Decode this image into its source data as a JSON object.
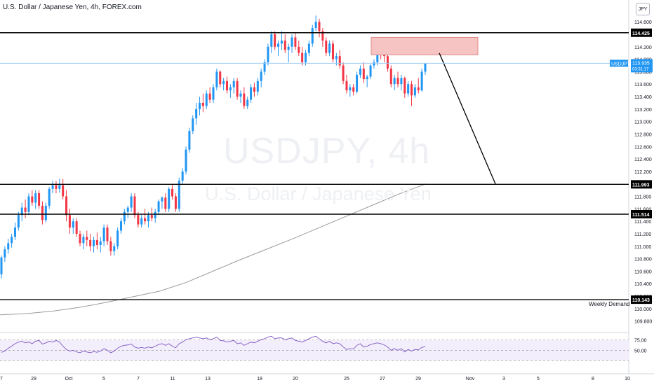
{
  "header": {
    "title": "U.S. Dollar / Japanese Yen, 4h, FOREX.com"
  },
  "watermark": {
    "symbol": "USDJPY, 4h",
    "name": "U.S. Dollar / Japanese Yen"
  },
  "symbol_badge": "JPY",
  "colors": {
    "up": "#2196f3",
    "down": "#f23645",
    "ma": "#9a9a9a",
    "rsi": "#7e57c2",
    "supply_zone": "#f7c4c4",
    "level_line": "#000000",
    "price_line": "#9ccaf4",
    "price_label": "#2196f3"
  },
  "chart_data": {
    "type": "candlestick",
    "title": "U.S. Dollar / Japanese Yen, 4h, FOREX.com",
    "ylim": [
      109.65,
      114.95
    ],
    "y_ticks": [
      "114.600",
      "114.400",
      "114.200",
      "114.000",
      "113.800",
      "113.600",
      "113.400",
      "113.200",
      "113.000",
      "112.800",
      "112.600",
      "112.400",
      "112.200",
      "112.000",
      "111.800",
      "111.600",
      "111.400",
      "111.200",
      "111.000",
      "110.800",
      "110.600",
      "110.400",
      "110.200",
      "110.000",
      "109.800"
    ],
    "x_ticks": [
      "7",
      "29",
      "Oct",
      "5",
      "7",
      "11",
      "13",
      "18",
      "20",
      "25",
      "27",
      "29",
      "Nov",
      "3",
      "5",
      "8",
      "10"
    ],
    "candles": [
      [
        110.55,
        110.85,
        110.48,
        110.82
      ],
      [
        110.82,
        111.0,
        110.75,
        110.95
      ],
      [
        110.95,
        111.12,
        110.88,
        111.05
      ],
      [
        111.05,
        111.2,
        110.98,
        111.15
      ],
      [
        111.15,
        111.38,
        111.1,
        111.3
      ],
      [
        111.3,
        111.55,
        111.25,
        111.5
      ],
      [
        111.5,
        111.7,
        111.4,
        111.62
      ],
      [
        111.62,
        111.75,
        111.45,
        111.55
      ],
      [
        111.55,
        111.85,
        111.5,
        111.8
      ],
      [
        111.8,
        111.9,
        111.65,
        111.7
      ],
      [
        111.7,
        111.9,
        111.6,
        111.85
      ],
      [
        111.85,
        111.9,
        111.6,
        111.65
      ],
      [
        111.65,
        111.72,
        111.35,
        111.42
      ],
      [
        111.42,
        111.7,
        111.38,
        111.65
      ],
      [
        111.65,
        111.95,
        111.6,
        111.92
      ],
      [
        111.92,
        112.05,
        111.85,
        111.98
      ],
      [
        111.98,
        112.05,
        111.85,
        111.92
      ],
      [
        111.92,
        112.08,
        111.86,
        111.98
      ],
      [
        111.98,
        112.08,
        111.75,
        111.8
      ],
      [
        111.8,
        111.9,
        111.4,
        111.5
      ],
      [
        111.5,
        111.6,
        111.2,
        111.3
      ],
      [
        111.3,
        111.45,
        111.2,
        111.4
      ],
      [
        111.4,
        111.45,
        111.15,
        111.2
      ],
      [
        111.2,
        111.25,
        111.0,
        111.05
      ],
      [
        111.05,
        111.2,
        110.95,
        111.15
      ],
      [
        111.15,
        111.25,
        111.0,
        111.1
      ],
      [
        111.1,
        111.2,
        110.92,
        111.0
      ],
      [
        111.0,
        111.15,
        110.9,
        111.1
      ],
      [
        111.1,
        111.22,
        110.95,
        111.02
      ],
      [
        111.02,
        111.15,
        110.9,
        111.08
      ],
      [
        111.08,
        111.35,
        111.0,
        111.3
      ],
      [
        111.3,
        111.35,
        111.02,
        111.08
      ],
      [
        111.08,
        111.15,
        110.85,
        110.92
      ],
      [
        110.92,
        111.05,
        110.85,
        111.0
      ],
      [
        111.0,
        111.3,
        110.95,
        111.25
      ],
      [
        111.25,
        111.45,
        111.2,
        111.4
      ],
      [
        111.4,
        111.6,
        111.35,
        111.55
      ],
      [
        111.55,
        111.65,
        111.45,
        111.62
      ],
      [
        111.62,
        111.85,
        111.55,
        111.8
      ],
      [
        111.8,
        111.85,
        111.45,
        111.5
      ],
      [
        111.5,
        111.55,
        111.3,
        111.35
      ],
      [
        111.35,
        111.5,
        111.3,
        111.45
      ],
      [
        111.45,
        111.6,
        111.35,
        111.4
      ],
      [
        111.4,
        111.55,
        111.3,
        111.5
      ],
      [
        111.5,
        111.62,
        111.4,
        111.45
      ],
      [
        111.45,
        111.6,
        111.38,
        111.55
      ],
      [
        111.55,
        111.75,
        111.5,
        111.72
      ],
      [
        111.72,
        111.8,
        111.6,
        111.78
      ],
      [
        111.78,
        111.85,
        111.55,
        111.6
      ],
      [
        111.6,
        111.95,
        111.55,
        111.92
      ],
      [
        111.92,
        112.0,
        111.75,
        111.8
      ],
      [
        111.8,
        111.85,
        111.55,
        111.6
      ],
      [
        111.6,
        112.1,
        111.55,
        112.05
      ],
      [
        112.05,
        112.25,
        112.0,
        112.2
      ],
      [
        112.2,
        112.6,
        112.15,
        112.55
      ],
      [
        112.55,
        112.9,
        112.5,
        112.85
      ],
      [
        112.85,
        113.1,
        112.8,
        113.05
      ],
      [
        113.05,
        113.3,
        112.95,
        113.2
      ],
      [
        113.2,
        113.4,
        113.1,
        113.3
      ],
      [
        113.3,
        113.45,
        113.15,
        113.25
      ],
      [
        113.25,
        113.5,
        113.2,
        113.45
      ],
      [
        113.45,
        113.55,
        113.3,
        113.35
      ],
      [
        113.35,
        113.6,
        113.3,
        113.55
      ],
      [
        113.55,
        113.85,
        113.5,
        113.8
      ],
      [
        113.8,
        113.82,
        113.55,
        113.6
      ],
      [
        113.6,
        113.7,
        113.5,
        113.65
      ],
      [
        113.65,
        113.72,
        113.45,
        113.5
      ],
      [
        113.5,
        113.6,
        113.38,
        113.55
      ],
      [
        113.55,
        113.7,
        113.45,
        113.65
      ],
      [
        113.65,
        113.7,
        113.35,
        113.4
      ],
      [
        113.4,
        113.5,
        113.3,
        113.45
      ],
      [
        113.45,
        113.55,
        113.2,
        113.25
      ],
      [
        113.25,
        113.4,
        113.2,
        113.35
      ],
      [
        113.35,
        113.6,
        113.3,
        113.55
      ],
      [
        113.55,
        113.62,
        113.4,
        113.48
      ],
      [
        113.48,
        113.7,
        113.42,
        113.65
      ],
      [
        113.65,
        113.85,
        113.55,
        113.8
      ],
      [
        113.8,
        114.0,
        113.75,
        113.95
      ],
      [
        113.95,
        114.25,
        113.9,
        114.2
      ],
      [
        114.2,
        114.45,
        114.1,
        114.4
      ],
      [
        114.4,
        114.45,
        114.15,
        114.2
      ],
      [
        114.2,
        114.3,
        114.05,
        114.25
      ],
      [
        114.25,
        114.45,
        114.15,
        114.3
      ],
      [
        114.3,
        114.4,
        114.1,
        114.15
      ],
      [
        114.15,
        114.25,
        113.95,
        114.2
      ],
      [
        114.2,
        114.4,
        114.1,
        114.35
      ],
      [
        114.35,
        114.42,
        114.15,
        114.2
      ],
      [
        114.2,
        114.3,
        114.05,
        114.1
      ],
      [
        114.1,
        114.2,
        113.9,
        113.95
      ],
      [
        113.95,
        114.15,
        113.9,
        114.1
      ],
      [
        114.1,
        114.3,
        114.05,
        114.25
      ],
      [
        114.25,
        114.55,
        114.2,
        114.5
      ],
      [
        114.5,
        114.7,
        114.45,
        114.6
      ],
      [
        114.6,
        114.65,
        114.35,
        114.45
      ],
      [
        114.45,
        114.5,
        114.2,
        114.3
      ],
      [
        114.3,
        114.35,
        114.05,
        114.1
      ],
      [
        114.1,
        114.3,
        114.05,
        114.25
      ],
      [
        114.25,
        114.3,
        113.95,
        114.0
      ],
      [
        114.0,
        114.1,
        113.9,
        114.05
      ],
      [
        114.05,
        114.15,
        113.85,
        113.9
      ],
      [
        113.9,
        113.95,
        113.6,
        113.65
      ],
      [
        113.65,
        113.75,
        113.45,
        113.5
      ],
      [
        113.5,
        113.6,
        113.4,
        113.55
      ],
      [
        113.55,
        113.6,
        113.42,
        113.48
      ],
      [
        113.48,
        113.8,
        113.45,
        113.75
      ],
      [
        113.75,
        113.9,
        113.7,
        113.85
      ],
      [
        113.85,
        113.95,
        113.62,
        113.68
      ],
      [
        113.68,
        113.75,
        113.55,
        113.72
      ],
      [
        113.72,
        113.92,
        113.68,
        113.9
      ],
      [
        113.9,
        114.0,
        113.85,
        113.95
      ],
      [
        113.95,
        114.18,
        113.9,
        114.15
      ],
      [
        114.15,
        114.2,
        114.0,
        114.1
      ],
      [
        114.1,
        114.2,
        113.95,
        114.05
      ],
      [
        114.05,
        114.1,
        113.8,
        113.85
      ],
      [
        113.85,
        113.9,
        113.55,
        113.6
      ],
      [
        113.6,
        113.75,
        113.5,
        113.7
      ],
      [
        113.7,
        113.8,
        113.55,
        113.6
      ],
      [
        113.6,
        113.75,
        113.5,
        113.7
      ],
      [
        113.7,
        113.72,
        113.38,
        113.45
      ],
      [
        113.45,
        113.65,
        113.4,
        113.6
      ],
      [
        113.6,
        113.65,
        113.25,
        113.42
      ],
      [
        113.42,
        113.6,
        113.38,
        113.55
      ],
      [
        113.55,
        113.7,
        113.45,
        113.5
      ],
      [
        113.5,
        113.85,
        113.48,
        113.8
      ],
      [
        113.8,
        113.94,
        113.75,
        113.93
      ]
    ],
    "ma_line": [
      109.9,
      109.92,
      109.96,
      110.02,
      110.1,
      110.19,
      110.28,
      110.42,
      110.6,
      110.78,
      110.95,
      111.12,
      111.3,
      111.48,
      111.66,
      111.84,
      112.0
    ],
    "levels": [
      {
        "price": 114.425,
        "label": "114.425"
      },
      {
        "price": 111.993,
        "label": "111.993"
      },
      {
        "price": 111.514,
        "label": "111.514"
      },
      {
        "price": 110.143,
        "label": "110.143",
        "note": "Weekly Demand"
      }
    ],
    "last_price": {
      "symbol": "USDJPY",
      "price": 113.935,
      "label": "113.935",
      "timer": "03:31:17"
    },
    "supply_zone": {
      "top": 114.35,
      "bottom": 114.07
    },
    "projection": {
      "from": 114.1,
      "to": 112.0
    },
    "rsi": {
      "levels": [
        "75.00",
        "50.00"
      ],
      "values": [
        45,
        48,
        55,
        60,
        66,
        70,
        72,
        68,
        70,
        66,
        72,
        74,
        65,
        68,
        72,
        70,
        74,
        70,
        60,
        52,
        48,
        50,
        46,
        44,
        48,
        46,
        44,
        47,
        45,
        48,
        54,
        50,
        44,
        48,
        55,
        60,
        62,
        63,
        65,
        58,
        55,
        57,
        55,
        58,
        56,
        60,
        64,
        66,
        62,
        66,
        60,
        56,
        66,
        70,
        76,
        78,
        80,
        82,
        80,
        78,
        80,
        76,
        78,
        82,
        74,
        73,
        70,
        72,
        74,
        66,
        68,
        62,
        66,
        70,
        68,
        72,
        76,
        78,
        82,
        84,
        78,
        80,
        80,
        76,
        78,
        80,
        74,
        72,
        70,
        74,
        78,
        82,
        84,
        78,
        72,
        68,
        72,
        66,
        68,
        66,
        58,
        52,
        54,
        53,
        62,
        66,
        58,
        60,
        64,
        66,
        68,
        66,
        63,
        58,
        50,
        54,
        50,
        54,
        46,
        52,
        48,
        52,
        51,
        57,
        59
      ]
    }
  }
}
